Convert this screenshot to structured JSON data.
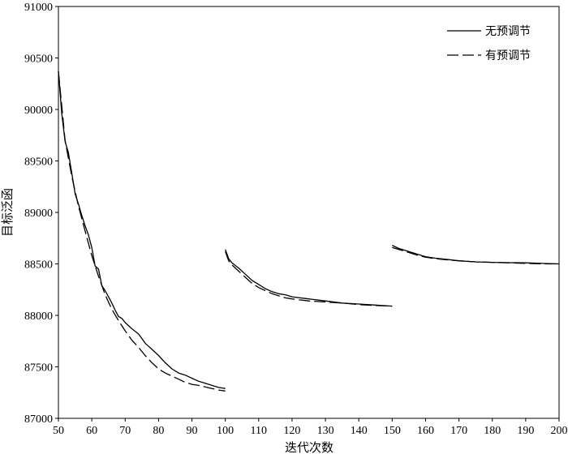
{
  "chart_data": {
    "type": "line",
    "title": "",
    "xlabel": "迭代次数",
    "ylabel": "目标泛函",
    "xlim": [
      50,
      200
    ],
    "ylim": [
      87000,
      91000
    ],
    "xticks": [
      50,
      60,
      70,
      80,
      90,
      100,
      110,
      120,
      130,
      140,
      150,
      160,
      170,
      180,
      190,
      200
    ],
    "yticks": [
      87000,
      87500,
      88000,
      88500,
      89000,
      89500,
      90000,
      90500,
      91000
    ],
    "grid": false,
    "legend_position": "top-right",
    "series": [
      {
        "name": "无预调节",
        "style": "solid",
        "color": "#000000",
        "segments": [
          [
            [
              50,
              90370
            ],
            [
              51,
              89960
            ],
            [
              52,
              89690
            ],
            [
              53,
              89580
            ],
            [
              54,
              89380
            ],
            [
              55,
              89180
            ],
            [
              56,
              89080
            ],
            [
              57,
              88970
            ],
            [
              58,
              88870
            ],
            [
              59,
              88780
            ],
            [
              60,
              88660
            ],
            [
              61,
              88480
            ],
            [
              62,
              88450
            ],
            [
              63,
              88290
            ],
            [
              64,
              88240
            ],
            [
              65,
              88180
            ],
            [
              66,
              88120
            ],
            [
              67,
              88050
            ],
            [
              68,
              87990
            ],
            [
              69,
              87970
            ],
            [
              70,
              87930
            ],
            [
              72,
              87870
            ],
            [
              74,
              87820
            ],
            [
              76,
              87730
            ],
            [
              78,
              87670
            ],
            [
              80,
              87610
            ],
            [
              82,
              87540
            ],
            [
              84,
              87480
            ],
            [
              86,
              87440
            ],
            [
              88,
              87420
            ],
            [
              90,
              87390
            ],
            [
              92,
              87360
            ],
            [
              94,
              87340
            ],
            [
              96,
              87320
            ],
            [
              98,
              87300
            ],
            [
              100,
              87290
            ]
          ],
          [
            [
              100,
              88640
            ],
            [
              101,
              88550
            ],
            [
              102,
              88510
            ],
            [
              104,
              88460
            ],
            [
              106,
              88400
            ],
            [
              108,
              88340
            ],
            [
              110,
              88300
            ],
            [
              112,
              88260
            ],
            [
              114,
              88230
            ],
            [
              116,
              88210
            ],
            [
              118,
              88200
            ],
            [
              120,
              88180
            ],
            [
              125,
              88160
            ],
            [
              130,
              88140
            ],
            [
              135,
              88120
            ],
            [
              140,
              88110
            ],
            [
              145,
              88100
            ],
            [
              150,
              88090
            ]
          ],
          [
            [
              150,
              88680
            ],
            [
              152,
              88650
            ],
            [
              155,
              88620
            ],
            [
              158,
              88590
            ],
            [
              160,
              88570
            ],
            [
              163,
              88555
            ],
            [
              166,
              88545
            ],
            [
              170,
              88530
            ],
            [
              175,
              88520
            ],
            [
              180,
              88515
            ],
            [
              185,
              88512
            ],
            [
              190,
              88510
            ],
            [
              195,
              88505
            ],
            [
              200,
              88500
            ]
          ]
        ]
      },
      {
        "name": "有预调节",
        "style": "dashed",
        "color": "#000000",
        "segments": [
          [
            [
              50,
              90370
            ],
            [
              52,
              89700
            ],
            [
              54,
              89350
            ],
            [
              56,
              89060
            ],
            [
              58,
              88820
            ],
            [
              60,
              88580
            ],
            [
              62,
              88380
            ],
            [
              64,
              88200
            ],
            [
              66,
              88060
            ],
            [
              68,
              87950
            ],
            [
              70,
              87850
            ],
            [
              72,
              87760
            ],
            [
              74,
              87690
            ],
            [
              76,
              87610
            ],
            [
              78,
              87540
            ],
            [
              80,
              87480
            ],
            [
              82,
              87440
            ],
            [
              84,
              87410
            ],
            [
              86,
              87380
            ],
            [
              88,
              87350
            ],
            [
              90,
              87330
            ],
            [
              92,
              87320
            ],
            [
              94,
              87305
            ],
            [
              96,
              87290
            ],
            [
              98,
              87275
            ],
            [
              100,
              87265
            ]
          ],
          [
            [
              100,
              88620
            ],
            [
              101,
              88530
            ],
            [
              102,
              88490
            ],
            [
              104,
              88430
            ],
            [
              106,
              88370
            ],
            [
              108,
              88310
            ],
            [
              110,
              88270
            ],
            [
              112,
              88240
            ],
            [
              114,
              88210
            ],
            [
              116,
              88190
            ],
            [
              118,
              88170
            ],
            [
              120,
              88160
            ],
            [
              125,
              88140
            ],
            [
              130,
              88130
            ],
            [
              135,
              88120
            ],
            [
              140,
              88105
            ],
            [
              145,
              88095
            ],
            [
              150,
              88090
            ]
          ],
          [
            [
              150,
              88660
            ],
            [
              152,
              88640
            ],
            [
              155,
              88610
            ],
            [
              158,
              88580
            ],
            [
              160,
              88565
            ],
            [
              163,
              88550
            ],
            [
              166,
              88540
            ],
            [
              170,
              88530
            ],
            [
              175,
              88520
            ],
            [
              180,
              88515
            ],
            [
              185,
              88510
            ],
            [
              190,
              88505
            ],
            [
              195,
              88500
            ],
            [
              200,
              88500
            ]
          ]
        ]
      }
    ]
  }
}
